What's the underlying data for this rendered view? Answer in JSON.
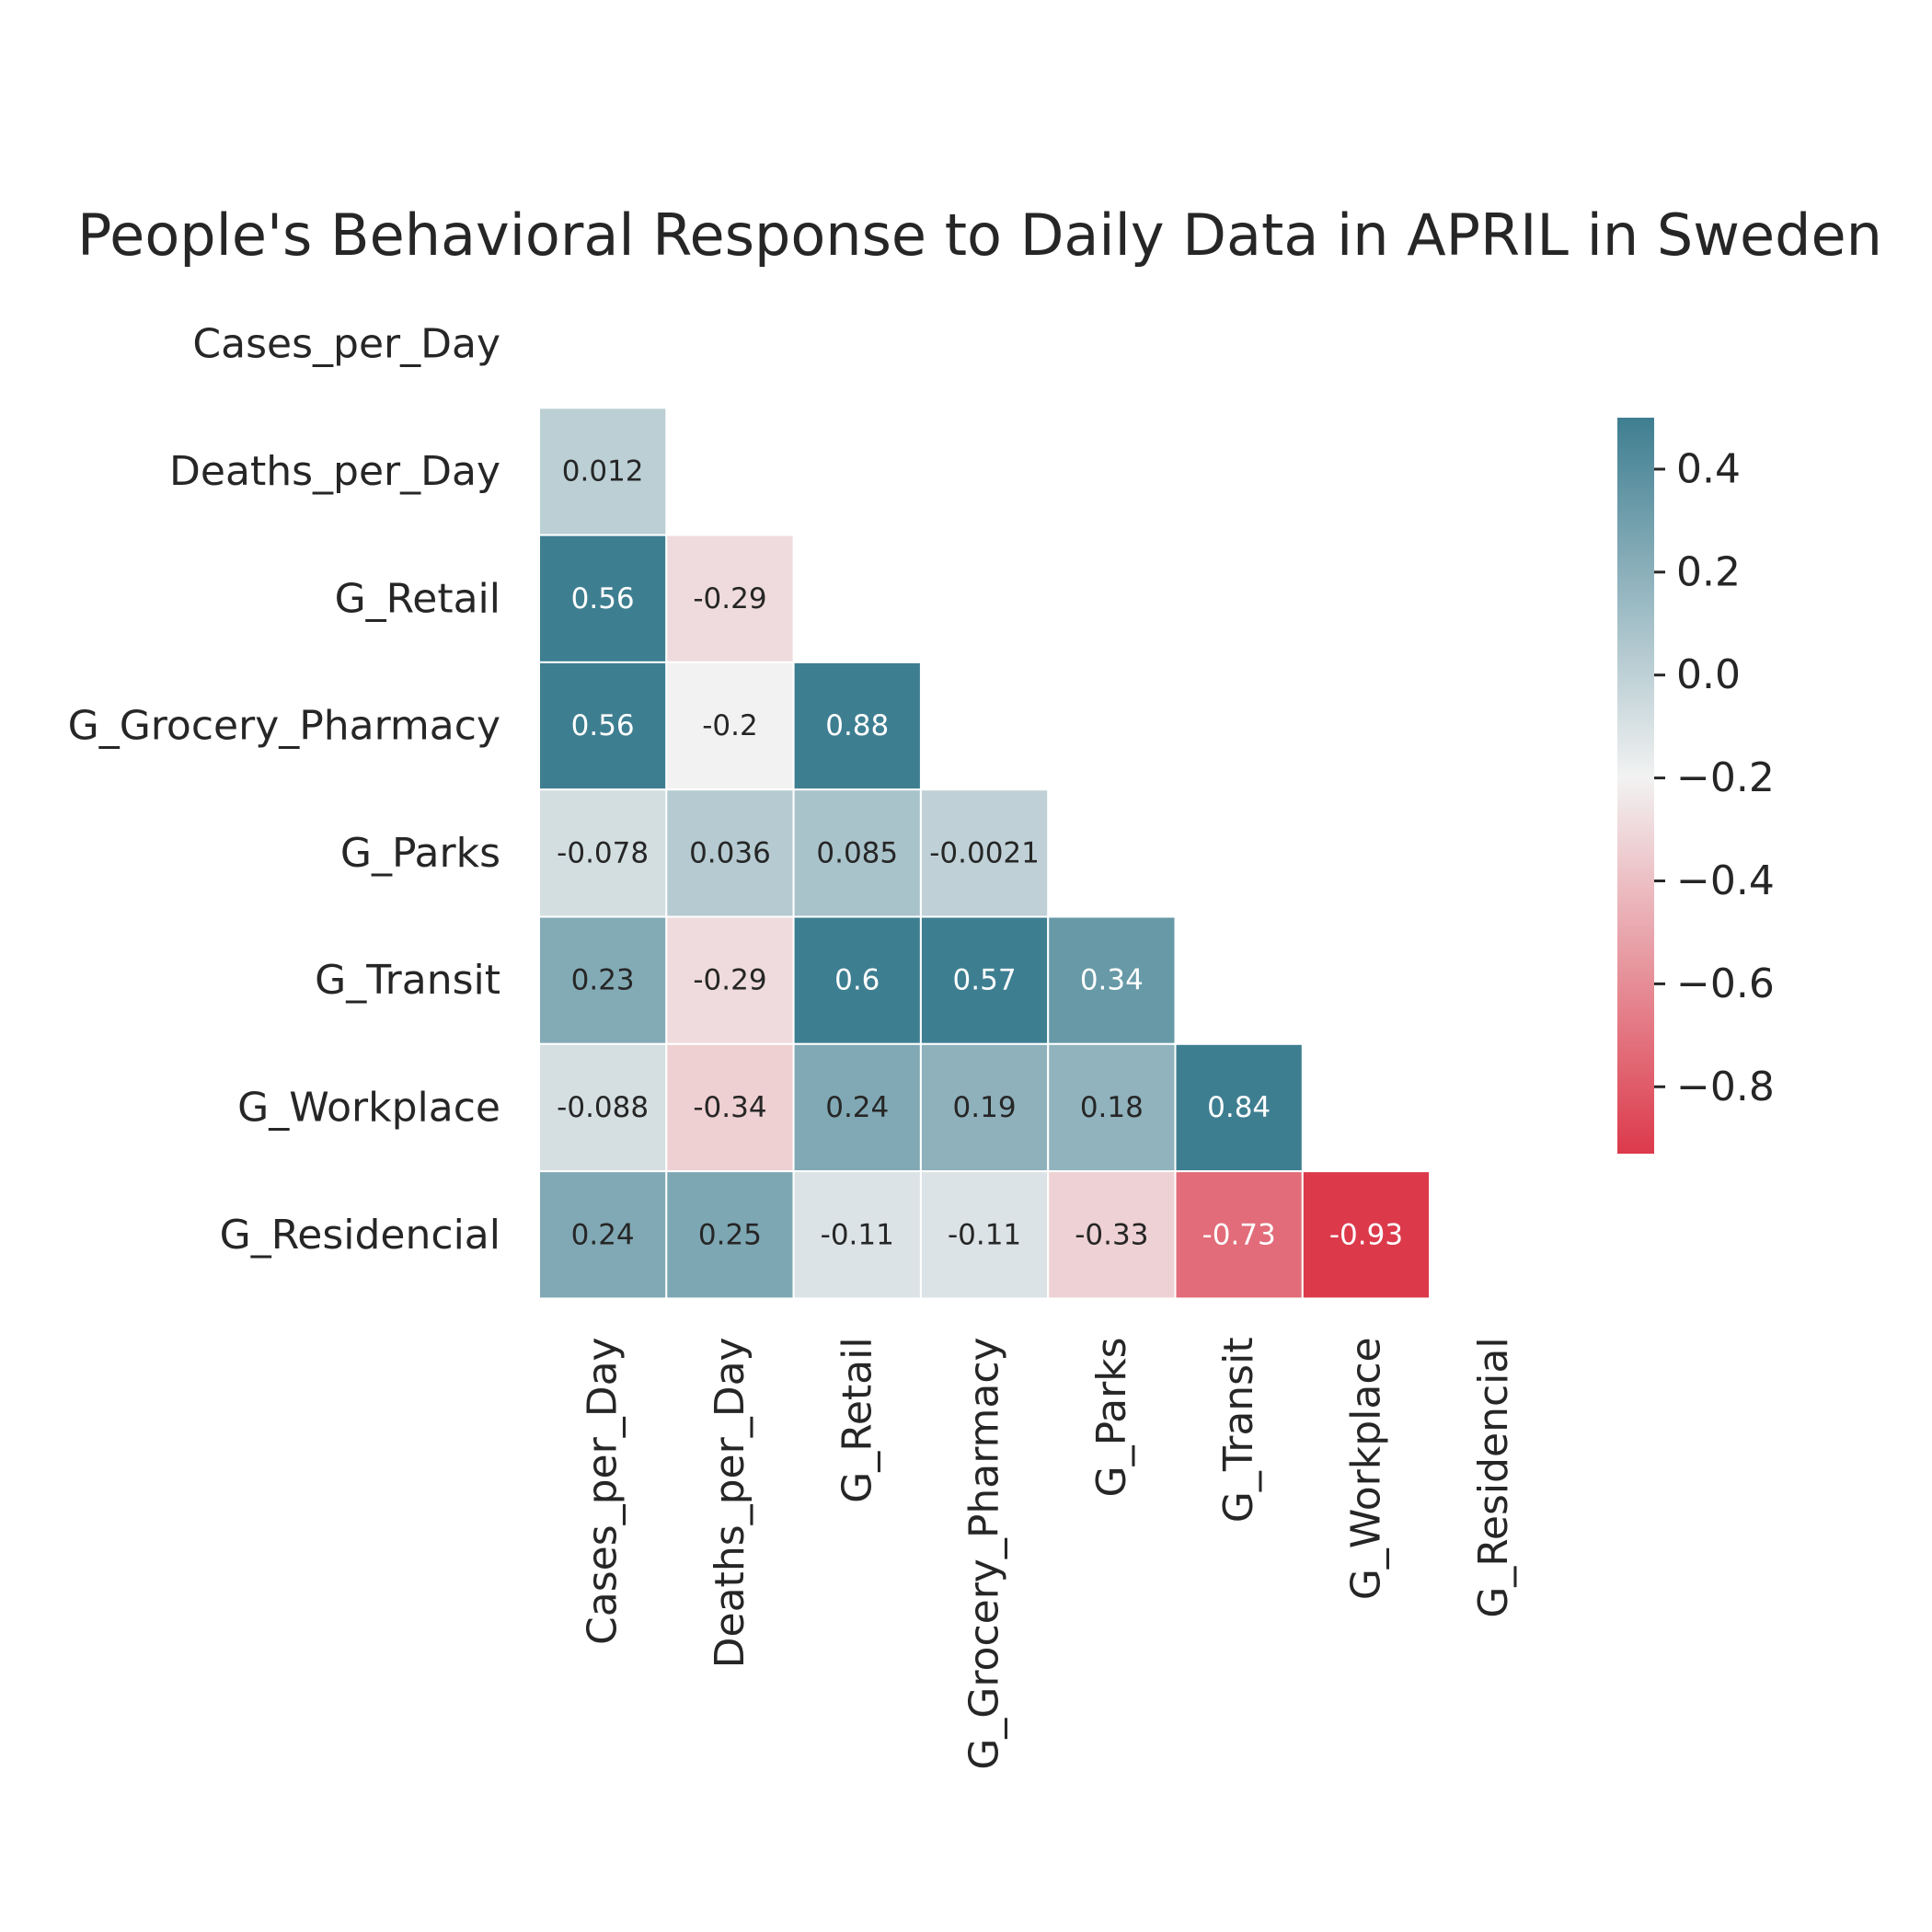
{
  "chart_data": {
    "type": "heatmap",
    "title": "People's Behavioral Response to Daily Data in APRIL in Sweden",
    "xlabel": "",
    "ylabel": "",
    "variables": [
      "Cases_per_Day",
      "Deaths_per_Day",
      "G_Retail",
      "G_Grocery_Pharmacy",
      "G_Parks",
      "G_Transit",
      "G_Workplace",
      "G_Residencial"
    ],
    "mask": "upper-triangle-including-diagonal",
    "cells": [
      {
        "row": "Deaths_per_Day",
        "col": "Cases_per_Day",
        "value": 0.012,
        "label": "0.012"
      },
      {
        "row": "G_Retail",
        "col": "Cases_per_Day",
        "value": 0.56,
        "label": "0.56"
      },
      {
        "row": "G_Retail",
        "col": "Deaths_per_Day",
        "value": -0.29,
        "label": "-0.29"
      },
      {
        "row": "G_Grocery_Pharmacy",
        "col": "Cases_per_Day",
        "value": 0.56,
        "label": "0.56"
      },
      {
        "row": "G_Grocery_Pharmacy",
        "col": "Deaths_per_Day",
        "value": -0.2,
        "label": "-0.2"
      },
      {
        "row": "G_Grocery_Pharmacy",
        "col": "G_Retail",
        "value": 0.88,
        "label": "0.88"
      },
      {
        "row": "G_Parks",
        "col": "Cases_per_Day",
        "value": -0.078,
        "label": "-0.078"
      },
      {
        "row": "G_Parks",
        "col": "Deaths_per_Day",
        "value": 0.036,
        "label": "0.036"
      },
      {
        "row": "G_Parks",
        "col": "G_Retail",
        "value": 0.085,
        "label": "0.085"
      },
      {
        "row": "G_Parks",
        "col": "G_Grocery_Pharmacy",
        "value": -0.0021,
        "label": "-0.0021"
      },
      {
        "row": "G_Transit",
        "col": "Cases_per_Day",
        "value": 0.23,
        "label": "0.23"
      },
      {
        "row": "G_Transit",
        "col": "Deaths_per_Day",
        "value": -0.29,
        "label": "-0.29"
      },
      {
        "row": "G_Transit",
        "col": "G_Retail",
        "value": 0.6,
        "label": "0.6"
      },
      {
        "row": "G_Transit",
        "col": "G_Grocery_Pharmacy",
        "value": 0.57,
        "label": "0.57"
      },
      {
        "row": "G_Transit",
        "col": "G_Parks",
        "value": 0.34,
        "label": "0.34"
      },
      {
        "row": "G_Workplace",
        "col": "Cases_per_Day",
        "value": -0.088,
        "label": "-0.088"
      },
      {
        "row": "G_Workplace",
        "col": "Deaths_per_Day",
        "value": -0.34,
        "label": "-0.34"
      },
      {
        "row": "G_Workplace",
        "col": "G_Retail",
        "value": 0.24,
        "label": "0.24"
      },
      {
        "row": "G_Workplace",
        "col": "G_Grocery_Pharmacy",
        "value": 0.19,
        "label": "0.19"
      },
      {
        "row": "G_Workplace",
        "col": "G_Parks",
        "value": 0.18,
        "label": "0.18"
      },
      {
        "row": "G_Workplace",
        "col": "G_Transit",
        "value": 0.84,
        "label": "0.84"
      },
      {
        "row": "G_Residencial",
        "col": "Cases_per_Day",
        "value": 0.24,
        "label": "0.24"
      },
      {
        "row": "G_Residencial",
        "col": "Deaths_per_Day",
        "value": 0.25,
        "label": "0.25"
      },
      {
        "row": "G_Residencial",
        "col": "G_Retail",
        "value": -0.11,
        "label": "-0.11"
      },
      {
        "row": "G_Residencial",
        "col": "G_Grocery_Pharmacy",
        "value": -0.11,
        "label": "-0.11"
      },
      {
        "row": "G_Residencial",
        "col": "G_Parks",
        "value": -0.33,
        "label": "-0.33"
      },
      {
        "row": "G_Residencial",
        "col": "G_Transit",
        "value": -0.73,
        "label": "-0.73"
      },
      {
        "row": "G_Residencial",
        "col": "G_Workplace",
        "value": -0.93,
        "label": "-0.93"
      }
    ],
    "colorbar": {
      "vmin": -0.93,
      "vmax": 0.5,
      "center": -0.2,
      "ticks": [
        0.4,
        0.2,
        0.0,
        -0.2,
        -0.4,
        -0.6,
        -0.8
      ],
      "tick_labels": [
        "0.4",
        "0.2",
        "0.0",
        "−0.2",
        "−0.4",
        "−0.6",
        "−0.8"
      ],
      "color_low": "#dc3a4b",
      "color_mid": "#f2f2f2",
      "color_high": "#3e7e91"
    }
  }
}
